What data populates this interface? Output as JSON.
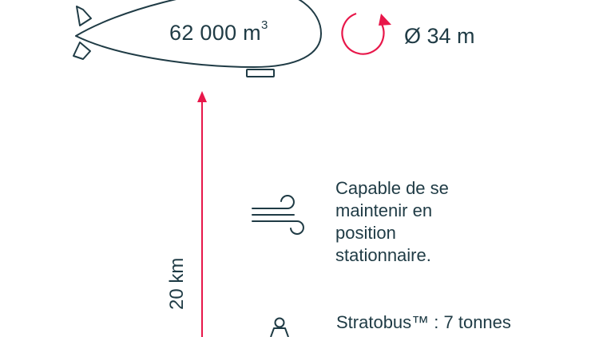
{
  "airship": {
    "volume_number": "62 000 m",
    "volume_superscript": "3"
  },
  "diameter": {
    "label": "Ø 34 m"
  },
  "altitude": {
    "label": "20 km"
  },
  "wind": {
    "lines": [
      "Capable de se",
      "maintenir en",
      "position",
      "stationnaire."
    ]
  },
  "weight": {
    "label": "Stratobus™ : 7 tonnes"
  },
  "colors": {
    "dark": "#1f3b45",
    "accent": "#e8174a"
  }
}
